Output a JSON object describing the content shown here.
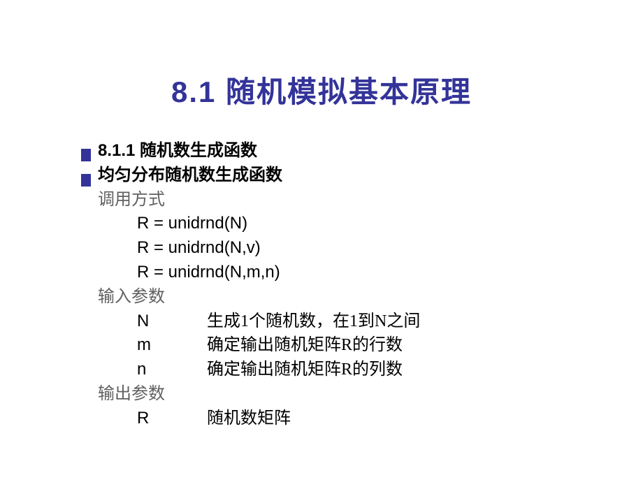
{
  "title": "8.1  随机模拟基本原理",
  "colors": {
    "title_color": "#333399",
    "bar_color": "#333399",
    "body_text": "#000000",
    "muted_text": "#606060",
    "background": "#ffffff"
  },
  "typography": {
    "title_fontsize": 42,
    "body_fontsize": 24,
    "title_weight": "bold"
  },
  "section": {
    "number_title": "8.1.1  随机数生成函数",
    "subtitle": "均匀分布随机数生成函数"
  },
  "call_label": "调用方式",
  "calls": [
    "R = unidrnd(N)",
    "R = unidrnd(N,v)",
    "R = unidrnd(N,m,n)"
  ],
  "input_label": "输入参数",
  "input_params": [
    {
      "key": "N",
      "desc": "生成1个随机数，在1到N之间"
    },
    {
      "key": "m",
      "desc": "确定输出随机矩阵R的行数"
    },
    {
      "key": "n",
      "desc": "确定输出随机矩阵R的列数"
    }
  ],
  "output_label": "输出参数",
  "output_params": [
    {
      "key": "R",
      "desc": "随机数矩阵"
    }
  ]
}
